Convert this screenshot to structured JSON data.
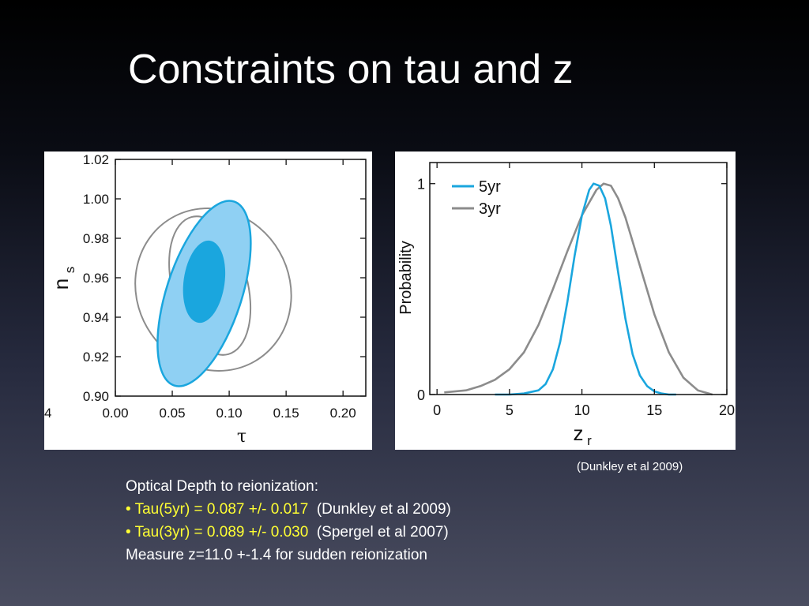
{
  "slide": {
    "title": "Constraints on tau and z",
    "figure_citation": "(Dunkley et al 2009)",
    "text": {
      "heading": "Optical Depth to reionization:",
      "bullets": [
        {
          "text": "• Tau(5yr) = 0.087 +/- 0.017",
          "ref": "(Dunkley et al 2009)"
        },
        {
          "text": "• Tau(3yr) = 0.089 +/- 0.030",
          "ref": "(Spergel et al 2007)"
        }
      ],
      "footer": "Measure z=11.0 +-1.4 for sudden reionization"
    }
  },
  "colors": {
    "accent_blue": "#1aa6de",
    "light_blue": "#8fd0f3",
    "gray": "#8c8c8c",
    "highlight_yellow": "#ffff33"
  },
  "chart_data": [
    {
      "type": "contour",
      "xlabel": "τ",
      "ylabel": "n",
      "ylabel_subscript": "s",
      "xlim": [
        0.0,
        0.22
      ],
      "ylim": [
        0.9,
        1.02
      ],
      "x_ticks": [
        0.0,
        0.05,
        0.1,
        0.15,
        0.2
      ],
      "x_tick_labels": [
        "0.00",
        "0.05",
        "0.10",
        "0.15",
        "0.20"
      ],
      "y_ticks": [
        0.9,
        0.92,
        0.94,
        0.96,
        0.98,
        1.0,
        1.02
      ],
      "y_tick_labels": [
        "0.90",
        "0.92",
        "0.94",
        "0.96",
        "0.98",
        "1.00",
        "1.02"
      ],
      "stray_tick_label": "4",
      "series": [
        {
          "filled": true,
          "regions": [
            {
              "level": "outer",
              "center": [
                0.078,
                0.952
              ],
              "rx": 0.033,
              "ry": 0.049,
              "rotation": 18
            },
            {
              "level": "inner",
              "center": [
                0.078,
                0.958
              ],
              "rx": 0.018,
              "ry": 0.021,
              "rotation": 8
            }
          ]
        },
        {
          "filled": false,
          "regions": [
            {
              "level": "outer",
              "center": [
                0.086,
                0.954
              ],
              "rx": 0.067,
              "ry": 0.042,
              "rotation": -30
            },
            {
              "level": "inner",
              "center": [
                0.083,
                0.956
              ],
              "rx": 0.033,
              "ry": 0.036,
              "rotation": -15
            }
          ]
        }
      ]
    },
    {
      "type": "line",
      "xlabel": "z",
      "xlabel_subscript": "r",
      "ylabel": "Probability",
      "xlim": [
        -0.5,
        20
      ],
      "ylim": [
        0,
        1.1
      ],
      "x_ticks": [
        0,
        5,
        10,
        15,
        20
      ],
      "x_tick_labels": [
        "0",
        "5",
        "10",
        "15",
        "20"
      ],
      "y_ticks": [
        0,
        1
      ],
      "y_tick_labels": [
        "0",
        "1"
      ],
      "legend_position": "top-left",
      "series": [
        {
          "name": "5yr",
          "x": [
            4.0,
            5.0,
            6.0,
            7.0,
            7.5,
            8.0,
            8.5,
            9.0,
            9.5,
            10.0,
            10.5,
            10.8,
            11.2,
            11.6,
            12.0,
            12.5,
            13.0,
            13.5,
            14.0,
            14.5,
            15.0,
            15.5,
            16.0,
            16.5
          ],
          "y": [
            0.0,
            0.0,
            0.005,
            0.02,
            0.05,
            0.12,
            0.25,
            0.44,
            0.66,
            0.85,
            0.97,
            1.0,
            0.99,
            0.93,
            0.8,
            0.58,
            0.36,
            0.19,
            0.09,
            0.04,
            0.015,
            0.005,
            0.0,
            0.0
          ]
        },
        {
          "name": "3yr",
          "x": [
            0.5,
            2.0,
            3.0,
            4.0,
            5.0,
            6.0,
            7.0,
            8.0,
            9.0,
            10.0,
            11.0,
            11.5,
            12.0,
            12.5,
            13.0,
            14.0,
            15.0,
            16.0,
            17.0,
            18.0,
            19.0
          ],
          "y": [
            0.01,
            0.02,
            0.04,
            0.07,
            0.12,
            0.2,
            0.33,
            0.5,
            0.68,
            0.85,
            0.97,
            1.0,
            0.99,
            0.93,
            0.84,
            0.61,
            0.38,
            0.2,
            0.08,
            0.02,
            0.0
          ]
        }
      ]
    }
  ]
}
